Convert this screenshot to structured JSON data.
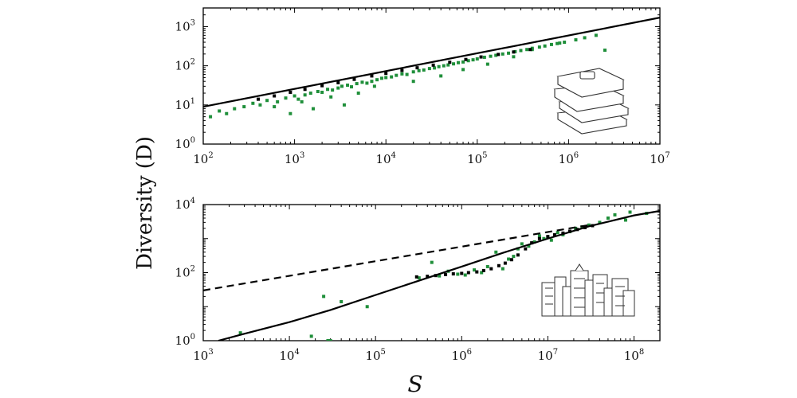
{
  "figure": {
    "ylabel": "Diversity (D)",
    "xlabel": "S"
  },
  "colors": {
    "data_points": "#1f8f3a",
    "binned_points": "#000000",
    "fit_line": "#000000",
    "axes": "#000000"
  },
  "chart_data": [
    {
      "type": "scatter",
      "panel": "top",
      "icon": "books-icon",
      "xscale": "log",
      "yscale": "log",
      "xlim": [
        100,
        10000000
      ],
      "ylim": [
        1,
        3000
      ],
      "xticks": [
        {
          "base": "10",
          "exp": "2"
        },
        {
          "base": "10",
          "exp": "3"
        },
        {
          "base": "10",
          "exp": "4"
        },
        {
          "base": "10",
          "exp": "5"
        },
        {
          "base": "10",
          "exp": "6"
        },
        {
          "base": "10",
          "exp": "7"
        }
      ],
      "yticks": [
        {
          "base": "10",
          "exp": "0"
        },
        {
          "base": "10",
          "exp": "1"
        },
        {
          "base": "10",
          "exp": "2"
        },
        {
          "base": "10",
          "exp": "3"
        }
      ],
      "fit_line": {
        "style": "solid",
        "x": [
          100,
          10000000
        ],
        "y": [
          9,
          1700
        ]
      },
      "scatter_series": {
        "color": "#1f8f3a",
        "x": [
          120,
          150,
          180,
          220,
          280,
          350,
          420,
          500,
          650,
          800,
          1000,
          1100,
          1300,
          1500,
          1800,
          2000,
          2300,
          2600,
          3000,
          3300,
          3800,
          4200,
          4800,
          5500,
          6200,
          7000,
          8000,
          9000,
          10000,
          11500,
          13000,
          15000,
          17000,
          20000,
          23000,
          26000,
          30000,
          34000,
          38000,
          43000,
          48000,
          55000,
          62000,
          70000,
          80000,
          90000,
          100000,
          120000,
          140000,
          160000,
          190000,
          220000,
          260000,
          300000,
          350000,
          400000,
          480000,
          550000,
          650000,
          750000,
          900000,
          1200000,
          1500000,
          2000000,
          2500000,
          600,
          1200,
          2500,
          5000,
          900,
          1600,
          3500,
          7500,
          20000,
          40000,
          70000,
          130000,
          250000,
          400000,
          800000
        ],
        "y": [
          5,
          7,
          6,
          8,
          9,
          11,
          10,
          13,
          12,
          15,
          17,
          14,
          18,
          20,
          22,
          21,
          25,
          24,
          27,
          30,
          32,
          29,
          35,
          38,
          36,
          40,
          44,
          48,
          50,
          52,
          57,
          62,
          60,
          70,
          75,
          78,
          85,
          88,
          95,
          100,
          105,
          112,
          120,
          125,
          135,
          142,
          150,
          165,
          175,
          185,
          200,
          210,
          230,
          245,
          260,
          280,
          300,
          320,
          350,
          370,
          400,
          460,
          520,
          600,
          250,
          9,
          12,
          16,
          20,
          6,
          8,
          10,
          30,
          40,
          55,
          80,
          110,
          170,
          260,
          380
        ]
      },
      "binned_series": {
        "color": "#000000",
        "x": [
          400,
          600,
          900,
          1300,
          2000,
          3000,
          4500,
          7000,
          10000,
          15000,
          22000,
          33000,
          50000,
          75000,
          110000,
          170000,
          250000,
          380000
        ],
        "y": [
          14,
          17,
          21,
          25,
          31,
          37,
          45,
          55,
          64,
          76,
          89,
          104,
          123,
          145,
          168,
          195,
          225,
          260
        ]
      }
    },
    {
      "type": "scatter",
      "panel": "bottom",
      "icon": "city-skyline-icon",
      "xscale": "log",
      "yscale": "log",
      "xlim": [
        1000,
        200000000
      ],
      "ylim": [
        1,
        10000
      ],
      "xticks": [
        {
          "base": "10",
          "exp": "3"
        },
        {
          "base": "10",
          "exp": "4"
        },
        {
          "base": "10",
          "exp": "5"
        },
        {
          "base": "10",
          "exp": "6"
        },
        {
          "base": "10",
          "exp": "7"
        },
        {
          "base": "10",
          "exp": "8"
        }
      ],
      "yticks": [
        {
          "base": "10",
          "exp": "0"
        },
        {
          "base": "10",
          "exp": "2"
        },
        {
          "base": "10",
          "exp": "4"
        }
      ],
      "fit_line_solid": {
        "style": "solid",
        "x": [
          1500,
          3000,
          10000,
          30000,
          100000,
          300000,
          1000000,
          3000000,
          10000000,
          30000000,
          100000000,
          200000000
        ],
        "y": [
          1,
          1.6,
          3.5,
          8,
          22,
          55,
          150,
          380,
          1000,
          2300,
          4800,
          6500
        ]
      },
      "fit_line_dashed": {
        "style": "dashed",
        "x": [
          1000,
          30000000
        ],
        "y": [
          30,
          2500
        ]
      },
      "scatter_series": {
        "color": "#1f8f3a",
        "x": [
          2700,
          18000,
          25000,
          28000,
          30000,
          40000,
          80000,
          320000,
          450000,
          550000,
          700000,
          900000,
          1100000,
          1400000,
          1700000,
          2000000,
          2500000,
          3000000,
          3500000,
          4000000,
          4500000,
          5000000,
          6000000,
          7000000,
          8000000,
          9000000,
          10000000,
          11000000,
          13000000,
          15000000,
          18000000,
          21000000,
          25000000,
          30000000,
          40000000,
          50000000,
          60000000,
          80000000,
          90000000,
          140000000
        ],
        "y": [
          1.7,
          1.35,
          20,
          1,
          1,
          14,
          10,
          70,
          200,
          80,
          110,
          90,
          85,
          120,
          100,
          150,
          400,
          130,
          250,
          300,
          500,
          700,
          600,
          800,
          1200,
          1000,
          1100,
          900,
          1500,
          1300,
          1600,
          2000,
          2200,
          2500,
          3000,
          4000,
          5000,
          3500,
          6000,
          5500
        ]
      },
      "binned_series": {
        "color": "#000000",
        "x": [
          300000,
          400000,
          500000,
          650000,
          800000,
          1000000,
          1200000,
          1500000,
          1800000,
          2200000,
          2700000,
          3200000,
          3800000,
          4500000,
          5500000,
          6500000,
          8000000,
          10000000,
          12000000,
          15000000,
          18000000,
          22000000,
          27000000,
          33000000
        ],
        "y": [
          75,
          78,
          82,
          88,
          92,
          95,
          100,
          105,
          115,
          130,
          160,
          190,
          240,
          330,
          500,
          750,
          1000,
          1150,
          1300,
          1450,
          1650,
          1850,
          2100,
          2400
        ]
      }
    }
  ]
}
